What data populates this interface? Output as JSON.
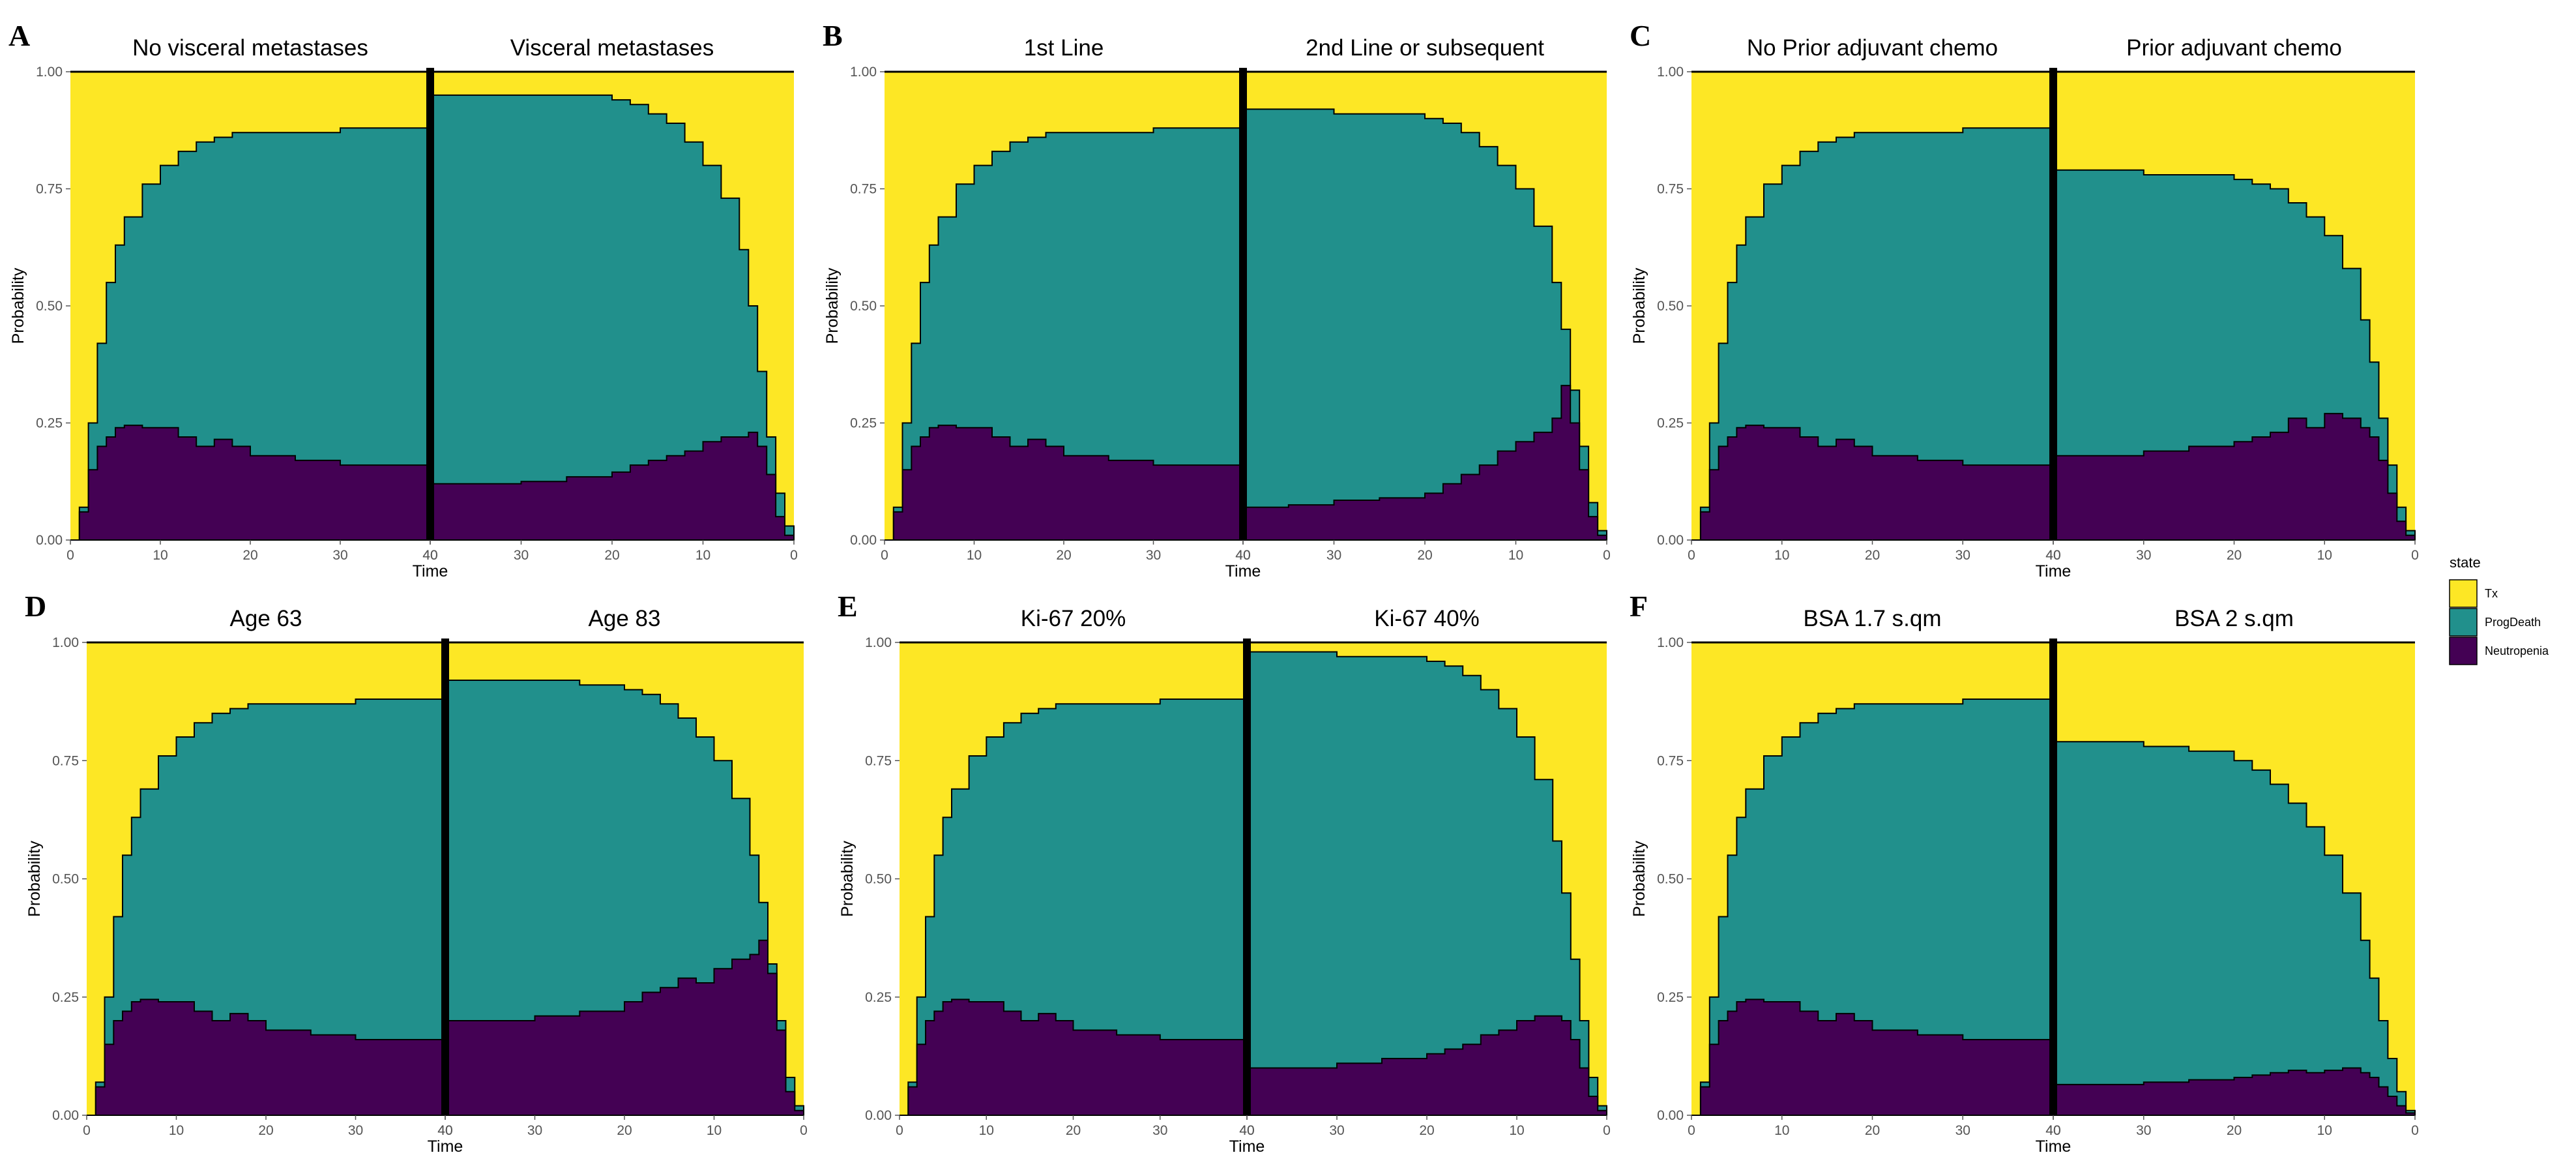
{
  "legend": {
    "title": "state",
    "items": [
      {
        "label": "Tx",
        "color": "#FDE725"
      },
      {
        "label": "ProgDeath",
        "color": "#21908C"
      },
      {
        "label": "Neutropenia",
        "color": "#440154"
      }
    ]
  },
  "chart_data": [
    {
      "type": "area",
      "panel": "A",
      "ylabel": "Probability",
      "xlabel": "Time",
      "yticks": [
        "0.00",
        "0.25",
        "0.50",
        "0.75",
        "1.00"
      ],
      "ylim": [
        0,
        1
      ],
      "left": {
        "title": "No visceral metastases",
        "xlim": [
          0,
          40
        ],
        "xticks": [
          "0",
          "10",
          "20",
          "30",
          "40"
        ],
        "time": [
          0,
          1,
          2,
          3,
          4,
          5,
          6,
          8,
          10,
          12,
          14,
          16,
          18,
          20,
          25,
          30,
          40
        ],
        "progdeath_upper": [
          0.0,
          0.07,
          0.25,
          0.42,
          0.55,
          0.63,
          0.69,
          0.76,
          0.8,
          0.83,
          0.85,
          0.86,
          0.87,
          0.87,
          0.87,
          0.88,
          0.88
        ],
        "neutropenia": [
          0.0,
          0.06,
          0.15,
          0.2,
          0.22,
          0.24,
          0.245,
          0.24,
          0.24,
          0.22,
          0.2,
          0.215,
          0.2,
          0.18,
          0.17,
          0.16,
          0.15
        ]
      },
      "right": {
        "title": "Visceral metastases",
        "xlim": [
          40,
          0
        ],
        "xticks": [
          "40",
          "30",
          "20",
          "10",
          "0"
        ],
        "time": [
          40,
          35,
          30,
          25,
          20,
          18,
          16,
          14,
          12,
          10,
          8,
          6,
          5,
          4,
          3,
          2,
          1,
          0
        ],
        "progdeath_upper": [
          0.95,
          0.95,
          0.95,
          0.95,
          0.94,
          0.93,
          0.91,
          0.89,
          0.85,
          0.8,
          0.73,
          0.62,
          0.5,
          0.36,
          0.22,
          0.1,
          0.03,
          0.0
        ],
        "neutropenia": [
          0.12,
          0.12,
          0.125,
          0.135,
          0.145,
          0.16,
          0.17,
          0.18,
          0.19,
          0.21,
          0.22,
          0.22,
          0.23,
          0.2,
          0.14,
          0.05,
          0.01,
          0.0
        ]
      }
    },
    {
      "type": "area",
      "panel": "B",
      "ylabel": "Probability",
      "xlabel": "Time",
      "yticks": [
        "0.00",
        "0.25",
        "0.50",
        "0.75",
        "1.00"
      ],
      "ylim": [
        0,
        1
      ],
      "left": {
        "title": "1st Line",
        "xlim": [
          0,
          40
        ],
        "xticks": [
          "0",
          "10",
          "20",
          "30",
          "40"
        ],
        "time": [
          0,
          1,
          2,
          3,
          4,
          5,
          6,
          8,
          10,
          12,
          14,
          16,
          18,
          20,
          25,
          30,
          40
        ],
        "progdeath_upper": [
          0.0,
          0.07,
          0.25,
          0.42,
          0.55,
          0.63,
          0.69,
          0.76,
          0.8,
          0.83,
          0.85,
          0.86,
          0.87,
          0.87,
          0.87,
          0.88,
          0.88
        ],
        "neutropenia": [
          0.0,
          0.06,
          0.15,
          0.2,
          0.22,
          0.24,
          0.245,
          0.24,
          0.24,
          0.22,
          0.2,
          0.215,
          0.2,
          0.18,
          0.17,
          0.16,
          0.15
        ]
      },
      "right": {
        "title": "2nd Line or subsequent",
        "xlim": [
          40,
          0
        ],
        "xticks": [
          "40",
          "30",
          "20",
          "10",
          "0"
        ],
        "time": [
          40,
          35,
          30,
          25,
          20,
          18,
          16,
          14,
          12,
          10,
          8,
          6,
          5,
          4,
          3,
          2,
          1,
          0
        ],
        "progdeath_upper": [
          0.92,
          0.92,
          0.91,
          0.91,
          0.9,
          0.89,
          0.87,
          0.84,
          0.8,
          0.75,
          0.67,
          0.55,
          0.45,
          0.32,
          0.2,
          0.08,
          0.02,
          0.0
        ],
        "neutropenia": [
          0.07,
          0.075,
          0.085,
          0.09,
          0.1,
          0.12,
          0.14,
          0.16,
          0.19,
          0.21,
          0.23,
          0.26,
          0.33,
          0.25,
          0.15,
          0.05,
          0.01,
          0.0
        ]
      }
    },
    {
      "type": "area",
      "panel": "C",
      "ylabel": "Probability",
      "xlabel": "Time",
      "yticks": [
        "0.00",
        "0.25",
        "0.50",
        "0.75",
        "1.00"
      ],
      "ylim": [
        0,
        1
      ],
      "left": {
        "title": "No Prior adjuvant chemo",
        "xlim": [
          0,
          40
        ],
        "xticks": [
          "0",
          "10",
          "20",
          "30",
          "40"
        ],
        "time": [
          0,
          1,
          2,
          3,
          4,
          5,
          6,
          8,
          10,
          12,
          14,
          16,
          18,
          20,
          25,
          30,
          40
        ],
        "progdeath_upper": [
          0.0,
          0.07,
          0.25,
          0.42,
          0.55,
          0.63,
          0.69,
          0.76,
          0.8,
          0.83,
          0.85,
          0.86,
          0.87,
          0.87,
          0.87,
          0.88,
          0.88
        ],
        "neutropenia": [
          0.0,
          0.06,
          0.15,
          0.2,
          0.22,
          0.24,
          0.245,
          0.24,
          0.24,
          0.22,
          0.2,
          0.215,
          0.2,
          0.18,
          0.17,
          0.16,
          0.15
        ]
      },
      "right": {
        "title": "Prior adjuvant chemo",
        "xlim": [
          40,
          0
        ],
        "xticks": [
          "40",
          "30",
          "20",
          "10",
          "0"
        ],
        "time": [
          40,
          35,
          30,
          25,
          20,
          18,
          16,
          14,
          12,
          10,
          8,
          6,
          5,
          4,
          3,
          2,
          1,
          0
        ],
        "progdeath_upper": [
          0.79,
          0.79,
          0.78,
          0.78,
          0.77,
          0.76,
          0.75,
          0.72,
          0.69,
          0.65,
          0.58,
          0.47,
          0.38,
          0.26,
          0.16,
          0.07,
          0.02,
          0.0
        ],
        "neutropenia": [
          0.18,
          0.18,
          0.19,
          0.2,
          0.21,
          0.22,
          0.23,
          0.26,
          0.24,
          0.27,
          0.26,
          0.24,
          0.22,
          0.17,
          0.1,
          0.04,
          0.01,
          0.0
        ]
      }
    },
    {
      "type": "area",
      "panel": "D",
      "ylabel": "Probability",
      "xlabel": "Time",
      "yticks": [
        "0.00",
        "0.25",
        "0.50",
        "0.75",
        "1.00"
      ],
      "ylim": [
        0,
        1
      ],
      "left": {
        "title": "Age 63",
        "xlim": [
          0,
          40
        ],
        "xticks": [
          "0",
          "10",
          "20",
          "30",
          "40"
        ],
        "time": [
          0,
          1,
          2,
          3,
          4,
          5,
          6,
          8,
          10,
          12,
          14,
          16,
          18,
          20,
          25,
          30,
          40
        ],
        "progdeath_upper": [
          0.0,
          0.07,
          0.25,
          0.42,
          0.55,
          0.63,
          0.69,
          0.76,
          0.8,
          0.83,
          0.85,
          0.86,
          0.87,
          0.87,
          0.87,
          0.88,
          0.88
        ],
        "neutropenia": [
          0.0,
          0.06,
          0.15,
          0.2,
          0.22,
          0.24,
          0.245,
          0.24,
          0.24,
          0.22,
          0.2,
          0.215,
          0.2,
          0.18,
          0.17,
          0.16,
          0.15
        ]
      },
      "right": {
        "title": "Age 83",
        "xlim": [
          40,
          0
        ],
        "xticks": [
          "40",
          "30",
          "20",
          "10",
          "0"
        ],
        "time": [
          40,
          35,
          30,
          25,
          20,
          18,
          16,
          14,
          12,
          10,
          8,
          6,
          5,
          4,
          3,
          2,
          1,
          0
        ],
        "progdeath_upper": [
          0.92,
          0.92,
          0.92,
          0.91,
          0.9,
          0.89,
          0.87,
          0.84,
          0.8,
          0.75,
          0.67,
          0.55,
          0.45,
          0.32,
          0.2,
          0.08,
          0.02,
          0.0
        ],
        "neutropenia": [
          0.2,
          0.2,
          0.21,
          0.22,
          0.24,
          0.26,
          0.27,
          0.29,
          0.28,
          0.31,
          0.33,
          0.34,
          0.37,
          0.3,
          0.18,
          0.05,
          0.01,
          0.0
        ]
      }
    },
    {
      "type": "area",
      "panel": "E",
      "ylabel": "Probability",
      "xlabel": "Time",
      "yticks": [
        "0.00",
        "0.25",
        "0.50",
        "0.75",
        "1.00"
      ],
      "ylim": [
        0,
        1
      ],
      "left": {
        "title": "Ki-67 20%",
        "xlim": [
          0,
          40
        ],
        "xticks": [
          "0",
          "10",
          "20",
          "30",
          "40"
        ],
        "time": [
          0,
          1,
          2,
          3,
          4,
          5,
          6,
          8,
          10,
          12,
          14,
          16,
          18,
          20,
          25,
          30,
          40
        ],
        "progdeath_upper": [
          0.0,
          0.07,
          0.25,
          0.42,
          0.55,
          0.63,
          0.69,
          0.76,
          0.8,
          0.83,
          0.85,
          0.86,
          0.87,
          0.87,
          0.87,
          0.88,
          0.88
        ],
        "neutropenia": [
          0.0,
          0.06,
          0.15,
          0.2,
          0.22,
          0.24,
          0.245,
          0.24,
          0.24,
          0.22,
          0.2,
          0.215,
          0.2,
          0.18,
          0.17,
          0.16,
          0.15
        ]
      },
      "right": {
        "title": "Ki-67 40%",
        "xlim": [
          40,
          0
        ],
        "xticks": [
          "40",
          "30",
          "20",
          "10",
          "0"
        ],
        "time": [
          40,
          35,
          30,
          25,
          20,
          18,
          16,
          14,
          12,
          10,
          8,
          6,
          5,
          4,
          3,
          2,
          1,
          0
        ],
        "progdeath_upper": [
          0.98,
          0.98,
          0.97,
          0.97,
          0.96,
          0.95,
          0.93,
          0.9,
          0.86,
          0.8,
          0.71,
          0.58,
          0.47,
          0.33,
          0.2,
          0.08,
          0.02,
          0.0
        ],
        "neutropenia": [
          0.1,
          0.1,
          0.11,
          0.12,
          0.13,
          0.14,
          0.15,
          0.17,
          0.18,
          0.2,
          0.21,
          0.21,
          0.2,
          0.16,
          0.1,
          0.04,
          0.01,
          0.0
        ]
      }
    },
    {
      "type": "area",
      "panel": "F",
      "ylabel": "Probability",
      "xlabel": "Time",
      "yticks": [
        "0.00",
        "0.25",
        "0.50",
        "0.75",
        "1.00"
      ],
      "ylim": [
        0,
        1
      ],
      "left": {
        "title": "BSA 1.7 s.qm",
        "xlim": [
          0,
          40
        ],
        "xticks": [
          "0",
          "10",
          "20",
          "30",
          "40"
        ],
        "time": [
          0,
          1,
          2,
          3,
          4,
          5,
          6,
          8,
          10,
          12,
          14,
          16,
          18,
          20,
          25,
          30,
          40
        ],
        "progdeath_upper": [
          0.0,
          0.07,
          0.25,
          0.42,
          0.55,
          0.63,
          0.69,
          0.76,
          0.8,
          0.83,
          0.85,
          0.86,
          0.87,
          0.87,
          0.87,
          0.88,
          0.88
        ],
        "neutropenia": [
          0.0,
          0.06,
          0.15,
          0.2,
          0.22,
          0.24,
          0.245,
          0.24,
          0.24,
          0.22,
          0.2,
          0.215,
          0.2,
          0.18,
          0.17,
          0.16,
          0.15
        ]
      },
      "right": {
        "title": "BSA 2 s.qm",
        "xlim": [
          40,
          0
        ],
        "xticks": [
          "40",
          "30",
          "20",
          "10",
          "0"
        ],
        "time": [
          40,
          35,
          30,
          25,
          20,
          18,
          16,
          14,
          12,
          10,
          8,
          6,
          5,
          4,
          3,
          2,
          1,
          0
        ],
        "progdeath_upper": [
          0.79,
          0.79,
          0.78,
          0.77,
          0.75,
          0.73,
          0.7,
          0.66,
          0.61,
          0.55,
          0.47,
          0.37,
          0.29,
          0.2,
          0.12,
          0.05,
          0.01,
          0.0
        ],
        "neutropenia": [
          0.065,
          0.065,
          0.07,
          0.075,
          0.08,
          0.085,
          0.09,
          0.095,
          0.09,
          0.095,
          0.1,
          0.09,
          0.08,
          0.06,
          0.04,
          0.02,
          0.005,
          0.0
        ]
      }
    }
  ]
}
